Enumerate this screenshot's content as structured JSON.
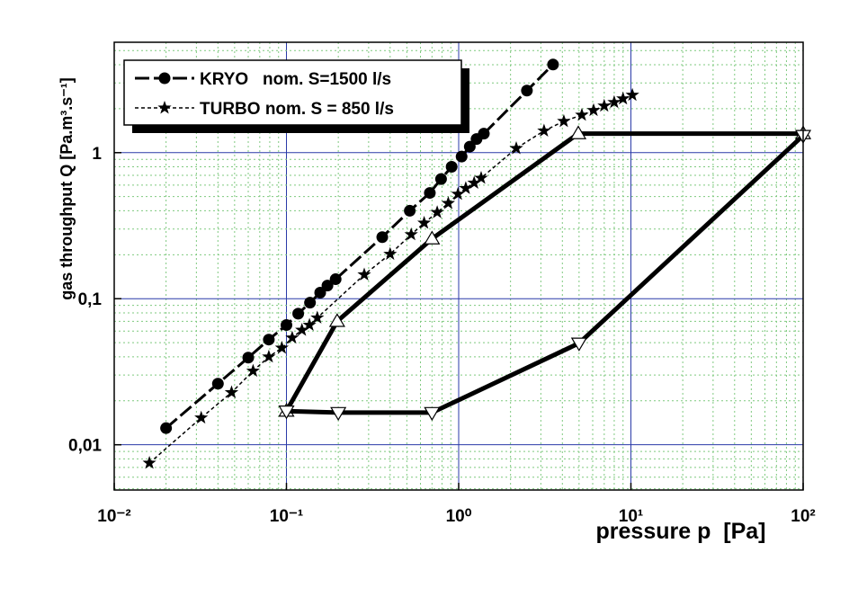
{
  "chart_data": {
    "type": "line",
    "x_label": "pressure p  [Pa]",
    "y_label": "gas throughput Q [Pa.m³.s⁻¹]",
    "xscale": "log",
    "yscale": "log",
    "xlim": [
      0.01,
      100
    ],
    "ylim": [
      0.0049,
      5.7
    ],
    "xticks": [
      {
        "value": 0.01,
        "label": "10⁻²"
      },
      {
        "value": 0.1,
        "label": "10⁻¹"
      },
      {
        "value": 1,
        "label": "10⁰"
      },
      {
        "value": 10,
        "label": "10¹"
      },
      {
        "value": 100,
        "label": "10²"
      }
    ],
    "yticks": [
      {
        "value": 0.01,
        "label": "0,01"
      },
      {
        "value": 0.1,
        "label": "0,1"
      },
      1
    ],
    "grid": true,
    "legend": "upper left",
    "series": [
      {
        "name": "KRYO   nom. S=1500 l/s",
        "color": "#000000",
        "marker": "circle",
        "dash": "long",
        "x": [
          0.02,
          0.04,
          0.06,
          0.079,
          0.1,
          0.117,
          0.137,
          0.157,
          0.173,
          0.193,
          0.36,
          0.52,
          0.68,
          0.79,
          0.91,
          1.04,
          1.16,
          1.27,
          1.4,
          2.49,
          3.53
        ],
        "values": [
          0.013,
          0.0262,
          0.0395,
          0.0525,
          0.066,
          0.079,
          0.094,
          0.11,
          0.123,
          0.136,
          0.264,
          0.4,
          0.53,
          0.66,
          0.8,
          0.94,
          1.1,
          1.24,
          1.35,
          2.66,
          4.01
        ]
      },
      {
        "name": "TURBO nom. S = 850 l/s",
        "color": "#000000",
        "marker": "star",
        "dash": "short",
        "x": [
          0.016,
          0.032,
          0.048,
          0.064,
          0.079,
          0.094,
          0.108,
          0.123,
          0.136,
          0.151,
          0.283,
          0.4,
          0.53,
          0.63,
          0.75,
          0.87,
          0.99,
          1.1,
          1.23,
          1.35,
          2.16,
          3.13,
          4.08,
          5.19,
          6.07,
          7.0,
          8.0,
          9.0,
          10.2
        ],
        "values": [
          0.0075,
          0.0153,
          0.0228,
          0.032,
          0.04,
          0.046,
          0.054,
          0.061,
          0.066,
          0.074,
          0.146,
          0.202,
          0.275,
          0.33,
          0.39,
          0.45,
          0.52,
          0.57,
          0.62,
          0.67,
          1.07,
          1.41,
          1.64,
          1.81,
          1.95,
          2.09,
          2.21,
          2.34,
          2.48
        ]
      },
      {
        "color": "#000000",
        "marker": "triangle-up",
        "dash": "solid",
        "x": [
          0.1,
          0.197,
          0.7,
          4.95,
          100
        ],
        "values": [
          0.017,
          0.07,
          0.257,
          1.35,
          1.35
        ]
      },
      {
        "color": "#000000",
        "marker": "triangle-down",
        "dash": "solid",
        "x": [
          0.1,
          0.2,
          0.7,
          5,
          100
        ],
        "values": [
          0.017,
          0.0166,
          0.0166,
          0.0496,
          1.31
        ]
      }
    ]
  }
}
